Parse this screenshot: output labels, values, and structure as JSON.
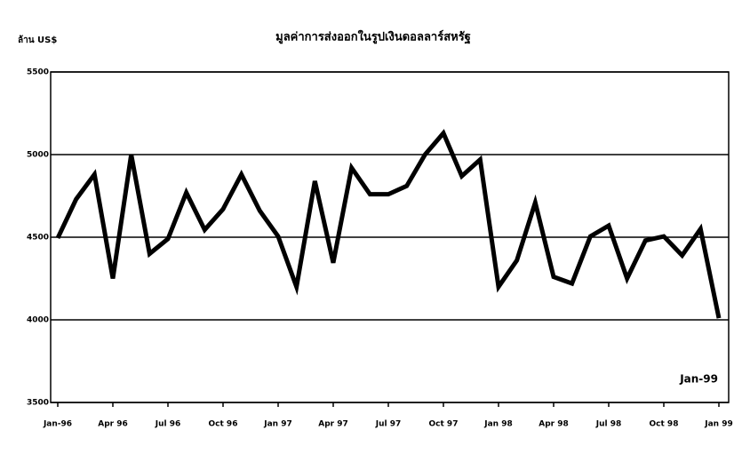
{
  "chart_data": {
    "type": "line",
    "title": "มูลค่าการส่งออกในรูปเงินดอลลาร์สหรัฐ",
    "y_label": "ล้าน US$",
    "annotation": "Jan-99",
    "categories": [
      "Jan-96",
      null,
      null,
      "Apr 96",
      null,
      null,
      "Jul 96",
      null,
      null,
      "Oct 96",
      null,
      null,
      "Jan 97",
      null,
      null,
      "Apr 97",
      null,
      null,
      "Jul 97",
      null,
      null,
      "Oct 97",
      null,
      null,
      "Jan 98",
      null,
      null,
      "Apr 98",
      null,
      null,
      "Jul 98",
      null,
      null,
      "Oct 98",
      null,
      null,
      "Jan 99"
    ],
    "series": [
      {
        "color": "#000000",
        "values": [
          4495,
          4730,
          4880,
          4250,
          5000,
          4400,
          4490,
          4770,
          4545,
          4670,
          4880,
          4660,
          4505,
          4200,
          4840,
          4345,
          4920,
          4760,
          4760,
          4810,
          5000,
          5130,
          4870,
          4970,
          4200,
          4360,
          4710,
          4260,
          4220,
          4505,
          4570,
          4250,
          4480,
          4505,
          4390,
          4550,
          4010
        ]
      }
    ],
    "ylim": [
      3500,
      5500
    ],
    "yticks": [
      3500,
      4000,
      4500,
      5000,
      5500
    ],
    "grid": true
  }
}
